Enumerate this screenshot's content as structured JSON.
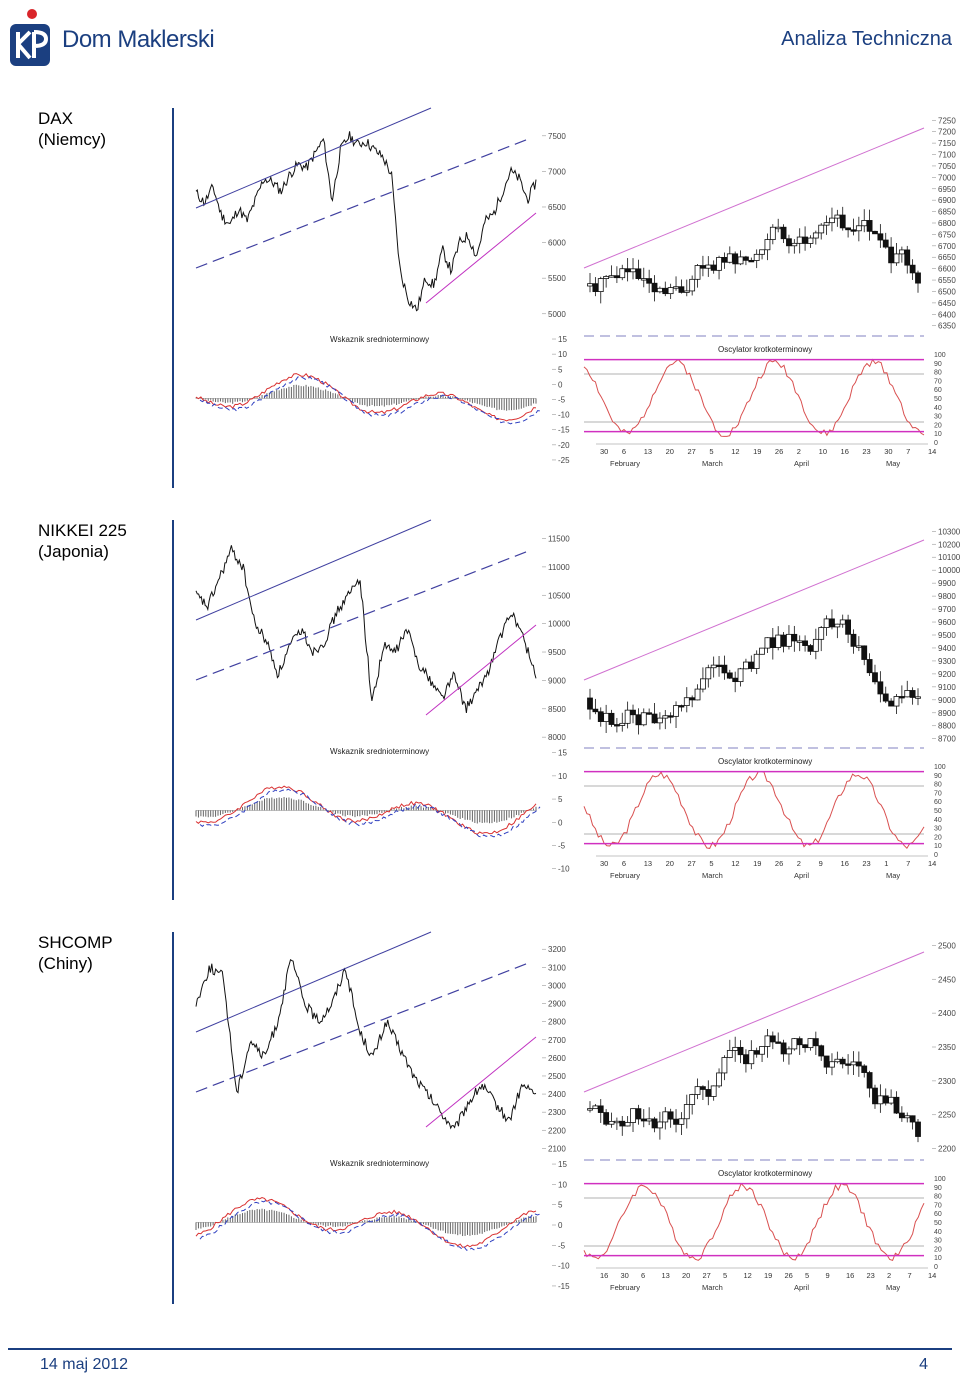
{
  "header": {
    "brand": "Dom Maklerski",
    "section": "Analiza Techniczna",
    "colors": {
      "brand_blue": "#1b3f80",
      "brand_red": "#d9252a"
    }
  },
  "footer": {
    "date": "14 maj 2012",
    "page": "4"
  },
  "panels": [
    {
      "market": "DAX",
      "country": "(Niemcy)",
      "top": 108,
      "long_term": {
        "left_axis": [
          7500,
          7000,
          6500,
          6000,
          5500,
          5000
        ],
        "ymin": 4800,
        "ymax": 7750
      },
      "macd": {
        "title": "Wskaznik srednioterminowy",
        "axis": [
          15,
          10,
          5,
          0,
          -5,
          -10,
          -15,
          -20,
          -25
        ],
        "ymin": -27,
        "ymax": 16
      },
      "candles": {
        "axis": [
          7250,
          7200,
          7150,
          7100,
          7050,
          7000,
          6950,
          6900,
          6850,
          6800,
          6750,
          6700,
          6650,
          6600,
          6550,
          6500,
          6450,
          6400,
          6350
        ],
        "ymin": 6340,
        "ymax": 7260
      },
      "stoch": {
        "title": "Oscylator krotkoterminowy",
        "axis": [
          100,
          90,
          80,
          70,
          60,
          50,
          40,
          30,
          20,
          10,
          0
        ]
      },
      "days": [
        "30",
        "6",
        "13",
        "20",
        "27",
        "5",
        "12",
        "19",
        "26",
        "2",
        "10",
        "16",
        "23",
        "30",
        "7",
        "14"
      ],
      "months": [
        "February",
        "March",
        "April",
        "May"
      ]
    },
    {
      "market": "NIKKEI 225",
      "country": "(Japonia)",
      "top": 520,
      "long_term": {
        "left_axis": [
          11500,
          11000,
          10500,
          10000,
          9500,
          9000,
          8500,
          8000
        ],
        "ymin": 7950,
        "ymax": 11650
      },
      "macd": {
        "title": "Wskaznik srednioterminowy",
        "axis": [
          15,
          10,
          5,
          0,
          -5,
          -10
        ],
        "ymin": -12,
        "ymax": 16
      },
      "candles": {
        "axis": [
          10300,
          10200,
          10100,
          10000,
          9900,
          9800,
          9700,
          9600,
          9500,
          9400,
          9300,
          9200,
          9100,
          9000,
          8900,
          8800,
          8700
        ],
        "ymin": 8690,
        "ymax": 10310
      },
      "stoch": {
        "title": "Oscylator krotkoterminowy",
        "axis": [
          100,
          90,
          80,
          70,
          60,
          50,
          40,
          30,
          20,
          10,
          0
        ]
      },
      "days": [
        "30",
        "6",
        "13",
        "20",
        "27",
        "5",
        "12",
        "19",
        "26",
        "2",
        "9",
        "16",
        "23",
        "1",
        "7",
        "14"
      ],
      "months": [
        "February",
        "March",
        "April",
        "May"
      ]
    },
    {
      "market": "SHCOMP",
      "country": "(Chiny)",
      "top": 932,
      "long_term": {
        "left_axis": [
          3200,
          3100,
          3000,
          2900,
          2800,
          2700,
          2600,
          2500,
          2400,
          2300,
          2200,
          2100
        ],
        "ymin": 2080,
        "ymax": 3240
      },
      "macd": {
        "title": "Wskaznik srednioterminowy",
        "axis": [
          15,
          10,
          5,
          0,
          -5,
          -10,
          -15
        ],
        "ymin": -16,
        "ymax": 16
      },
      "candles": {
        "axis": [
          2500,
          2450,
          2400,
          2350,
          2300,
          2250,
          2200
        ],
        "ymin": 2195,
        "ymax": 2505
      },
      "stoch": {
        "title": "Oscylator krotkoterminowy",
        "axis": [
          100,
          90,
          80,
          70,
          60,
          50,
          40,
          30,
          20,
          10,
          0
        ]
      },
      "days": [
        "16",
        "30",
        "6",
        "13",
        "20",
        "27",
        "5",
        "12",
        "19",
        "26",
        "5",
        "9",
        "16",
        "23",
        "2",
        "7",
        "14"
      ],
      "months": [
        "February",
        "March",
        "April",
        "May"
      ]
    }
  ],
  "chart_data": [
    {
      "type": "line",
      "title": "DAX",
      "series": [
        {
          "values": [
            6700,
            6560,
            6780,
            6380,
            6250,
            6480,
            6300,
            6600,
            6900,
            6850,
            6720,
            6950,
            7100,
            7050,
            7250,
            7450,
            6580,
            7300,
            7500,
            7380,
            7420,
            7300,
            7200,
            6950,
            5600,
            5200,
            5050,
            5500,
            5400,
            5900,
            5600,
            6000,
            6100,
            5800,
            6300,
            6400,
            6700,
            7000,
            6900,
            6600,
            6850
          ]
        }
      ]
    },
    {
      "type": "line",
      "title": "NIKKEI 225",
      "series": [
        {
          "values": [
            10500,
            10300,
            10800,
            11300,
            11000,
            10000,
            9700,
            9100,
            9600,
            9900,
            9500,
            9700,
            10200,
            10500,
            10800,
            8600,
            9600,
            9500,
            9900,
            9300,
            9000,
            8700,
            9100,
            8500,
            8800,
            9200,
            9800,
            10200,
            9700,
            9100
          ]
        }
      ]
    },
    {
      "type": "line",
      "title": "SHCOMP",
      "series": [
        {
          "values": [
            2900,
            3100,
            3050,
            2400,
            2700,
            2600,
            2800,
            3150,
            2900,
            2800,
            2900,
            3100,
            2750,
            2600,
            2800,
            2650,
            2500,
            2400,
            2300,
            2200,
            2350,
            2450,
            2350,
            2250,
            2450,
            2400
          ]
        }
      ]
    }
  ]
}
